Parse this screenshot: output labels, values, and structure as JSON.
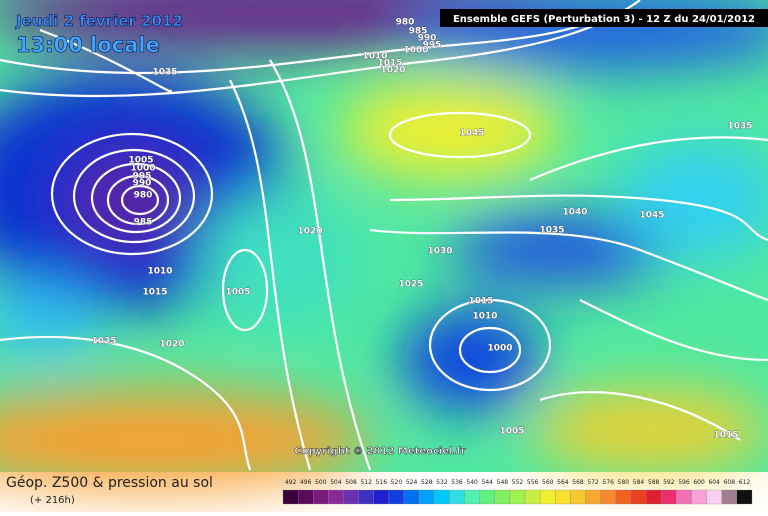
{
  "header": {
    "date": "Jeudi 2 fevrier 2012",
    "time": "13:00 locale",
    "model": "Ensemble GEFS (Perturbation 3)  -  12 Z du 24/01/2012"
  },
  "isobar_labels": [
    "1035",
    "980",
    "985",
    "990",
    "995",
    "1000",
    "1010",
    "1015",
    "1020",
    "1045",
    "1035",
    "1005",
    "1000",
    "995",
    "990",
    "980",
    "985",
    "1020",
    "1040",
    "1045",
    "1035",
    "1030",
    "1010",
    "1015",
    "1005",
    "1025",
    "1015",
    "1010",
    "1000",
    "1025",
    "1020",
    "1005",
    "1015"
  ],
  "copyright": "Copyright © 2012 Meteociel.fr",
  "footer": {
    "title": "Géop. Z500 & pression au sol",
    "lead": "(+ 216h)"
  },
  "scale": {
    "labels": [
      "492",
      "496",
      "500",
      "504",
      "508",
      "512",
      "516",
      "520",
      "524",
      "528",
      "532",
      "536",
      "540",
      "544",
      "548",
      "552",
      "556",
      "560",
      "564",
      "568",
      "572",
      "576",
      "580",
      "584",
      "588",
      "592",
      "596",
      "600",
      "604",
      "608",
      "612"
    ],
    "colors": [
      "#3a003a",
      "#5a0a5a",
      "#7a1a7a",
      "#8a2a9a",
      "#6a30b0",
      "#4030c0",
      "#2020d0",
      "#1040e0",
      "#0070f0",
      "#00a0f8",
      "#00c8f8",
      "#30e0e0",
      "#50f0b0",
      "#60f080",
      "#80f060",
      "#a0f050",
      "#c8f040",
      "#f0f030",
      "#f8e030",
      "#f8c830",
      "#f8a830",
      "#f88830",
      "#f06020",
      "#e84020",
      "#e02030",
      "#e83070",
      "#f070b0",
      "#f8a0d8",
      "#f8d0f0",
      "#a08090",
      "#101010"
    ]
  }
}
